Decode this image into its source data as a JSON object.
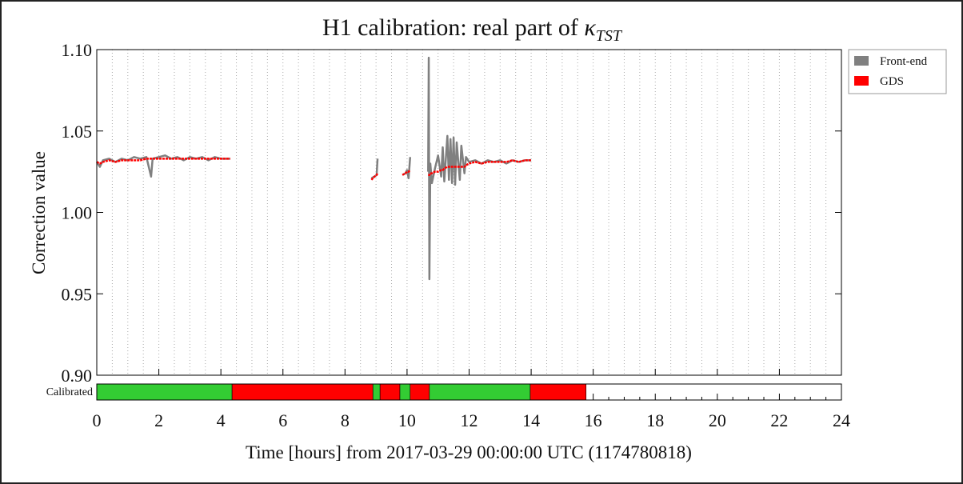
{
  "chart_data": {
    "type": "line",
    "title": "H1 calibration: real part of ",
    "title_symbol": "κ",
    "title_subscript": "TST",
    "xlabel": "Time [hours] from 2017-03-29 00:00:00 UTC (1174780818)",
    "ylabel": "Correction value",
    "xlim": [
      0,
      24
    ],
    "xticks": [
      0,
      2,
      4,
      6,
      8,
      10,
      12,
      14,
      16,
      18,
      20,
      22,
      24
    ],
    "xminorticks": [
      0.5,
      1,
      1.5,
      2.5,
      3,
      3.5,
      4.5,
      5,
      5.5,
      6.5,
      7,
      7.5,
      8.5,
      9,
      9.5,
      10.5,
      11,
      11.5,
      12.5,
      13,
      13.5,
      14.5,
      15,
      15.5,
      16.5,
      17,
      17.5,
      18.5,
      19,
      19.5,
      20.5,
      21,
      21.5,
      22.5,
      23,
      23.5
    ],
    "ylim": [
      0.9,
      1.1
    ],
    "yticks": [
      {
        "value": 0.9,
        "label": "0.90"
      },
      0.95,
      {
        "value": 1.0,
        "label": "1.00"
      },
      1.05,
      {
        "value": 1.1,
        "label": "1.10"
      }
    ],
    "grid": true,
    "legend": "outside upper right",
    "x": [
      0,
      0.1,
      0.2,
      0.4,
      0.6,
      0.8,
      1.0,
      1.2,
      1.4,
      1.6,
      1.75,
      1.8,
      2.0,
      2.2,
      2.4,
      2.6,
      2.8,
      3.0,
      3.2,
      3.4,
      3.6,
      3.8,
      4.0,
      4.3,
      4.4,
      8.85,
      8.95,
      9.02,
      9.05,
      9.3,
      9.85,
      9.95,
      10.0,
      10.05,
      10.1,
      10.4,
      10.68,
      10.7,
      10.72,
      10.75,
      10.8,
      10.9,
      11.0,
      11.1,
      11.15,
      11.2,
      11.3,
      11.35,
      11.4,
      11.45,
      11.5,
      11.55,
      11.6,
      11.7,
      11.75,
      11.85,
      11.9,
      12.0,
      12.2,
      12.4,
      12.6,
      12.8,
      13.0,
      13.2,
      13.4,
      13.6,
      13.8,
      14.0
    ],
    "series": [
      {
        "name": "Front-end",
        "color": "#808080",
        "values": [
          1.031,
          1.028,
          1.032,
          1.033,
          1.031,
          1.033,
          1.032,
          1.034,
          1.033,
          1.034,
          1.022,
          1.033,
          1.034,
          1.035,
          1.033,
          1.034,
          1.032,
          1.034,
          1.033,
          1.034,
          1.032,
          1.034,
          1.033,
          1.033,
          null,
          1.021,
          1.022,
          1.023,
          1.033,
          null,
          1.023,
          1.024,
          1.026,
          1.021,
          1.034,
          null,
          1.025,
          1.095,
          0.959,
          1.03,
          1.018,
          1.027,
          1.035,
          1.022,
          1.04,
          1.019,
          1.047,
          1.02,
          1.045,
          1.018,
          1.046,
          1.017,
          1.043,
          1.02,
          1.041,
          1.024,
          1.034,
          1.031,
          1.032,
          1.03,
          1.032,
          1.031,
          1.032,
          1.03,
          1.032,
          1.031,
          1.032,
          1.032
        ]
      },
      {
        "name": "GDS",
        "color": "#ff0000",
        "values": [
          1.031,
          1.03,
          1.031,
          1.032,
          1.031,
          1.032,
          1.032,
          1.032,
          1.032,
          1.033,
          1.033,
          1.033,
          1.033,
          1.033,
          1.033,
          1.033,
          1.033,
          1.033,
          1.033,
          1.033,
          1.033,
          1.033,
          1.033,
          1.033,
          null,
          1.02,
          1.022,
          1.023,
          1.024,
          null,
          1.023,
          1.024,
          1.025,
          1.025,
          1.026,
          null,
          1.023,
          1.023,
          1.023,
          1.024,
          1.024,
          1.025,
          1.025,
          1.026,
          1.026,
          1.027,
          1.028,
          1.028,
          1.028,
          1.028,
          1.028,
          1.028,
          1.028,
          1.028,
          1.028,
          1.028,
          1.029,
          1.03,
          1.031,
          1.03,
          1.031,
          1.031,
          1.031,
          1.031,
          1.032,
          1.031,
          1.032,
          1.032
        ]
      }
    ],
    "segment_label": "Calibrated",
    "segments": [
      {
        "start": 0,
        "end": 4.36,
        "color": "#33cc33"
      },
      {
        "start": 4.36,
        "end": 8.9,
        "color": "#ff0000"
      },
      {
        "start": 8.9,
        "end": 9.13,
        "color": "#33cc33"
      },
      {
        "start": 9.13,
        "end": 9.77,
        "color": "#ff0000"
      },
      {
        "start": 9.77,
        "end": 10.1,
        "color": "#33cc33"
      },
      {
        "start": 10.1,
        "end": 10.72,
        "color": "#ff0000"
      },
      {
        "start": 10.72,
        "end": 13.97,
        "color": "#33cc33"
      },
      {
        "start": 13.97,
        "end": 15.77,
        "color": "#ff0000"
      }
    ]
  }
}
